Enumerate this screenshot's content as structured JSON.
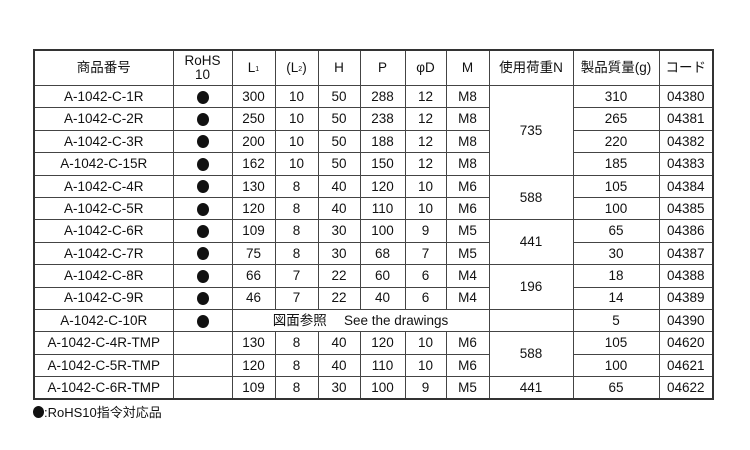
{
  "headers": {
    "product_no": "商品番号",
    "rohs_line1": "RoHS",
    "rohs_line2": "10",
    "l1": "L",
    "l1_sub": "1",
    "l2_open": "(L",
    "l2_sub": "2",
    "l2_close": ")",
    "h": "H",
    "p": "P",
    "phi_d": "φD",
    "m": "M",
    "load": "使用荷重N",
    "mass": "製品質量(g)",
    "code": "コード"
  },
  "rows": [
    {
      "product": "A-1042-C-1R",
      "rohs": true,
      "l1": "300",
      "l2": "10",
      "h": "50",
      "p": "288",
      "d": "12",
      "m": "M8",
      "load": "735",
      "load_span": 4,
      "mass": "310",
      "code": "04380"
    },
    {
      "product": "A-1042-C-2R",
      "rohs": true,
      "l1": "250",
      "l2": "10",
      "h": "50",
      "p": "238",
      "d": "12",
      "m": "M8",
      "mass": "265",
      "code": "04381"
    },
    {
      "product": "A-1042-C-3R",
      "rohs": true,
      "l1": "200",
      "l2": "10",
      "h": "50",
      "p": "188",
      "d": "12",
      "m": "M8",
      "mass": "220",
      "code": "04382"
    },
    {
      "product": "A-1042-C-15R",
      "rohs": true,
      "l1": "162",
      "l2": "10",
      "h": "50",
      "p": "150",
      "d": "12",
      "m": "M8",
      "mass": "185",
      "code": "04383"
    },
    {
      "product": "A-1042-C-4R",
      "rohs": true,
      "l1": "130",
      "l2": "8",
      "h": "40",
      "p": "120",
      "d": "10",
      "m": "M6",
      "load": "588",
      "load_span": 2,
      "mass": "105",
      "code": "04384"
    },
    {
      "product": "A-1042-C-5R",
      "rohs": true,
      "l1": "120",
      "l2": "8",
      "h": "40",
      "p": "110",
      "d": "10",
      "m": "M6",
      "mass": "100",
      "code": "04385"
    },
    {
      "product": "A-1042-C-6R",
      "rohs": true,
      "l1": "109",
      "l2": "8",
      "h": "30",
      "p": "100",
      "d": "9",
      "m": "M5",
      "load": "441",
      "load_span": 2,
      "mass": "65",
      "code": "04386"
    },
    {
      "product": "A-1042-C-7R",
      "rohs": true,
      "l1": "75",
      "l2": "8",
      "h": "30",
      "p": "68",
      "d": "7",
      "m": "M5",
      "mass": "30",
      "code": "04387"
    },
    {
      "product": "A-1042-C-8R",
      "rohs": true,
      "l1": "66",
      "l2": "7",
      "h": "22",
      "p": "60",
      "d": "6",
      "m": "M4",
      "load": "196",
      "load_span": 2,
      "mass": "18",
      "code": "04388"
    },
    {
      "product": "A-1042-C-9R",
      "rohs": true,
      "l1": "46",
      "l2": "7",
      "h": "22",
      "p": "40",
      "d": "6",
      "m": "M4",
      "mass": "14",
      "code": "04389"
    },
    {
      "product": "A-1042-C-10R",
      "rohs": true,
      "drawing_note": "図面参照　 See the drawings",
      "load": "",
      "load_span": 1,
      "mass": "5",
      "code": "04390"
    },
    {
      "product": "A-1042-C-4R-TMP",
      "rohs": false,
      "l1": "130",
      "l2": "8",
      "h": "40",
      "p": "120",
      "d": "10",
      "m": "M6",
      "load": "588",
      "load_span": 2,
      "mass": "105",
      "code": "04620"
    },
    {
      "product": "A-1042-C-5R-TMP",
      "rohs": false,
      "l1": "120",
      "l2": "8",
      "h": "40",
      "p": "110",
      "d": "10",
      "m": "M6",
      "mass": "100",
      "code": "04621"
    },
    {
      "product": "A-1042-C-6R-TMP",
      "rohs": false,
      "l1": "109",
      "l2": "8",
      "h": "30",
      "p": "100",
      "d": "9",
      "m": "M5",
      "load": "441",
      "load_span": 1,
      "mass": "65",
      "code": "04622"
    }
  ],
  "footnote": ":RoHS10指令対応品"
}
